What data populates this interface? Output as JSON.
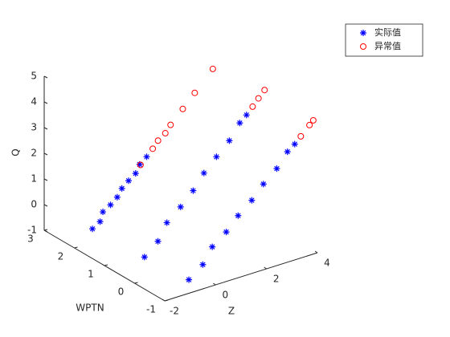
{
  "chart_data": {
    "type": "scatter3d",
    "xlabel": "Z",
    "ylabel": "WPTN",
    "zlabel": "Q",
    "xlim": [
      -2,
      4
    ],
    "ylim": [
      -1,
      3
    ],
    "zlim": [
      -1,
      5
    ],
    "xticks": [
      -2,
      0,
      2,
      4
    ],
    "yticks": [
      -1,
      0,
      1,
      2,
      3
    ],
    "zticks": [
      -1,
      0,
      1,
      2,
      3,
      4,
      5
    ],
    "legend": "top-right",
    "series": [
      {
        "name": "实际值",
        "color": "#0000ff",
        "marker": "asterisk",
        "x": [
          -1.88,
          -1.64,
          -1.41,
          -1.17,
          -0.93,
          -0.7,
          -0.46,
          -0.22,
          0.01,
          0.25,
          -1.02,
          -0.55,
          -0.08,
          0.4,
          0.87,
          1.34,
          1.81,
          2.28,
          2.76,
          2.99,
          -0.46,
          0.03,
          0.52,
          1.01,
          1.5,
          1.99,
          2.47,
          2.96,
          3.45,
          3.7
        ],
        "y": [
          1.5,
          1.45,
          1.55,
          1.5,
          1.48,
          1.52,
          1.5,
          1.47,
          1.53,
          1.5,
          0.5,
          0.45,
          0.55,
          0.5,
          0.48,
          0.52,
          0.5,
          0.47,
          0.53,
          0.5,
          -0.5,
          -0.55,
          -0.45,
          -0.5,
          -0.48,
          -0.52,
          -0.5,
          -0.53,
          -0.47,
          -0.5
        ],
        "z": [
          0.05,
          0.29,
          0.53,
          0.76,
          1.0,
          1.24,
          1.48,
          1.71,
          1.95,
          2.19,
          -0.63,
          -0.13,
          0.38,
          0.88,
          1.38,
          1.89,
          2.39,
          2.89,
          3.39,
          3.65,
          -1.0,
          -0.53,
          -0.06,
          0.4,
          0.87,
          1.34,
          1.81,
          2.28,
          2.74,
          2.98
        ]
      },
      {
        "name": "异常值",
        "color": "#ff0000",
        "marker": "circle",
        "x": [
          0.01,
          0.49,
          0.72,
          0.96,
          1.19,
          1.67,
          2.14,
          2.85,
          3.23,
          3.46,
          3.7,
          3.94,
          4.28,
          4.43
        ],
        "y": [
          1.5,
          1.5,
          1.52,
          1.48,
          1.5,
          1.5,
          1.5,
          1.5,
          0.5,
          0.5,
          0.5,
          -0.5,
          -0.5,
          -0.5
        ],
        "z": [
          1.95,
          2.43,
          2.66,
          2.9,
          3.14,
          3.61,
          4.09,
          4.8,
          3.9,
          4.15,
          4.4,
          3.21,
          3.54,
          3.68
        ]
      }
    ]
  }
}
